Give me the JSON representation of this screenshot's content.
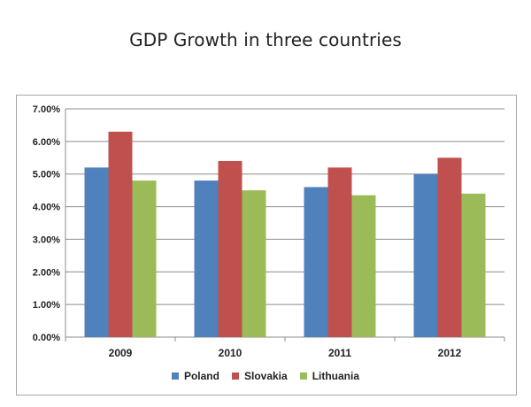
{
  "chart_data": {
    "type": "bar",
    "title": "GDP Growth in three countries",
    "xlabel": "",
    "ylabel": "",
    "categories": [
      "2009",
      "2010",
      "2011",
      "2012"
    ],
    "series": [
      {
        "name": "Poland",
        "color": "#4F81BD",
        "values": [
          5.2,
          4.8,
          4.6,
          5.0
        ]
      },
      {
        "name": "Slovakia",
        "color": "#C0504D",
        "values": [
          6.3,
          5.4,
          5.2,
          5.5
        ]
      },
      {
        "name": "Lithuania",
        "color": "#9BBB59",
        "values": [
          4.8,
          4.5,
          4.35,
          4.4
        ]
      }
    ],
    "ylim": [
      0,
      7
    ],
    "yticks": [
      "0.00%",
      "1.00%",
      "2.00%",
      "3.00%",
      "4.00%",
      "5.00%",
      "6.00%",
      "7.00%"
    ],
    "grid": true,
    "legend_position": "bottom"
  }
}
